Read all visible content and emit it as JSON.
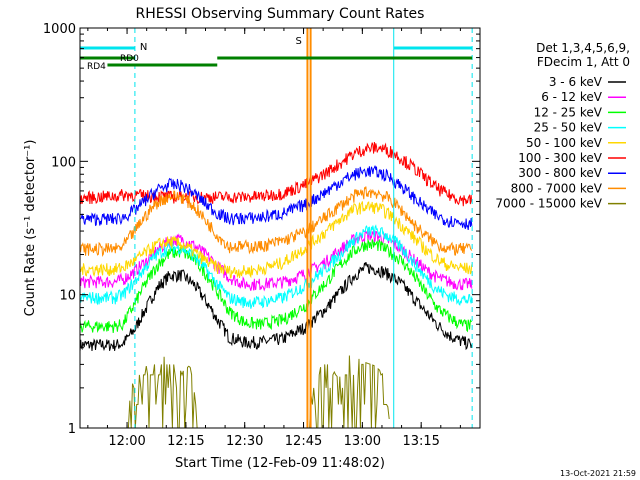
{
  "chart_data": {
    "type": "line",
    "title": "RHESSI Observing Summary Count Rates",
    "xlabel": "Start Time (12-Feb-09 11:48:02)",
    "ylabel": "Count Rate (s⁻¹ detector⁻¹)",
    "y_scale": "log",
    "ylim": [
      1,
      1000
    ],
    "x_range_minutes_from_start": [
      0,
      102
    ],
    "x_ticks": [
      {
        "label": "12:00",
        "minute": 12
      },
      {
        "label": "12:15",
        "minute": 27
      },
      {
        "label": "12:30",
        "minute": 42
      },
      {
        "label": "12:45",
        "minute": 57
      },
      {
        "label": "13:00",
        "minute": 72
      },
      {
        "label": "13:15",
        "minute": 87
      }
    ],
    "y_ticks": [
      {
        "label": "1",
        "value": 1
      },
      {
        "label": "10",
        "value": 10
      },
      {
        "label": "100",
        "value": 100
      },
      {
        "label": "1000",
        "value": 1000
      }
    ],
    "legend": {
      "placement": "right",
      "header": [
        "Det 1,3,4,5,6,9,",
        "FDecim 1, Att 0"
      ]
    },
    "series": [
      {
        "name": "3 - 6 keV",
        "color": "#000000",
        "x": [
          0,
          9,
          11,
          14,
          17,
          20,
          23,
          26,
          29,
          32,
          35,
          38,
          42,
          46,
          52,
          58,
          63,
          67,
          70,
          73,
          76,
          79,
          82,
          85,
          88,
          91,
          94,
          97,
          100
        ],
        "values": [
          4.2,
          4.2,
          4.3,
          5.5,
          8,
          11.5,
          14,
          14,
          12,
          9,
          6.5,
          4.8,
          4.4,
          4.4,
          4.7,
          5.8,
          8,
          11,
          14,
          16,
          15.5,
          14,
          12,
          9.5,
          7.5,
          6,
          5,
          4.5,
          4.2
        ]
      },
      {
        "name": "6 - 12 keV",
        "color": "#ff00ff",
        "x": [
          0,
          9,
          11,
          14,
          17,
          20,
          23,
          26,
          29,
          32,
          35,
          38,
          42,
          46,
          52,
          58,
          63,
          67,
          70,
          73,
          76,
          79,
          82,
          85,
          88,
          91,
          94,
          97,
          100
        ],
        "values": [
          12.5,
          12.5,
          13,
          15,
          18,
          22,
          25.5,
          26,
          23.5,
          20,
          16.5,
          13.5,
          12,
          12,
          12.5,
          14.5,
          18,
          22.5,
          26,
          28,
          27.5,
          25,
          22,
          18.5,
          15.5,
          13.5,
          12.5,
          12,
          12
        ]
      },
      {
        "name": "12 - 25 keV",
        "color": "#00ff00",
        "x": [
          0,
          9,
          11,
          14,
          17,
          20,
          23,
          26,
          29,
          32,
          35,
          38,
          42,
          46,
          52,
          58,
          63,
          67,
          70,
          73,
          76,
          79,
          82,
          85,
          88,
          91,
          94,
          97,
          100
        ],
        "values": [
          5.8,
          5.8,
          6,
          8.5,
          12.5,
          17,
          20.5,
          21,
          18.5,
          14.5,
          10.5,
          7.5,
          6.2,
          6,
          6.5,
          8.5,
          12.5,
          17.5,
          21.5,
          24,
          23.5,
          21,
          18,
          14,
          10.5,
          8,
          6.8,
          6,
          5.8
        ]
      },
      {
        "name": "25 - 50 keV",
        "color": "#00ffff",
        "x": [
          0,
          9,
          11,
          14,
          17,
          20,
          23,
          26,
          29,
          32,
          35,
          38,
          42,
          46,
          52,
          58,
          63,
          67,
          70,
          73,
          76,
          79,
          82,
          85,
          88,
          91,
          94,
          97,
          100
        ],
        "values": [
          9.5,
          9.5,
          10,
          12.5,
          16.5,
          20.5,
          22.5,
          22.5,
          19.5,
          15.5,
          12,
          9.5,
          8.8,
          8.8,
          9.5,
          12,
          16,
          21,
          26,
          30,
          30,
          27,
          22.5,
          17.5,
          13.5,
          11,
          9.8,
          9.3,
          9
        ]
      },
      {
        "name": "50 - 100 keV",
        "color": "#ffd700",
        "x": [
          0,
          9,
          11,
          14,
          17,
          20,
          23,
          26,
          29,
          32,
          35,
          38,
          42,
          46,
          52,
          58,
          63,
          67,
          70,
          73,
          76,
          79,
          82,
          85,
          88,
          91,
          94,
          97,
          100
        ],
        "values": [
          15.5,
          15.5,
          16,
          18,
          21,
          24,
          25,
          24,
          21,
          18,
          16,
          15,
          15,
          15.5,
          17.5,
          23,
          30,
          38,
          44,
          46,
          45,
          40,
          33,
          27,
          22,
          18.5,
          16.5,
          16,
          15.5
        ]
      },
      {
        "name": "100 - 300 keV",
        "color": "#ff0000",
        "x": [
          0,
          9,
          11,
          14,
          17,
          20,
          23,
          26,
          29,
          32,
          35,
          38,
          42,
          46,
          52,
          58,
          63,
          67,
          70,
          73,
          76,
          79,
          82,
          85,
          88,
          91,
          94,
          97,
          100
        ],
        "values": [
          53,
          55,
          56,
          56,
          55,
          55,
          54,
          54,
          54,
          54,
          54,
          54,
          54,
          54.5,
          58,
          68,
          83,
          100,
          115,
          125,
          127,
          120,
          105,
          90,
          75,
          63,
          56,
          52,
          51
        ]
      },
      {
        "name": "300 - 800 keV",
        "color": "#0000ff",
        "x": [
          0,
          9,
          11,
          14,
          17,
          20,
          23,
          26,
          29,
          32,
          35,
          38,
          42,
          46,
          52,
          58,
          63,
          67,
          70,
          73,
          76,
          79,
          82,
          85,
          88,
          91,
          94,
          97,
          100
        ],
        "values": [
          37,
          37,
          38,
          43,
          52,
          62,
          67,
          66,
          58,
          48,
          41,
          37,
          37.5,
          38,
          41,
          48,
          60,
          72,
          80,
          85,
          83,
          76,
          65,
          54,
          45,
          39,
          36,
          35,
          34
        ]
      },
      {
        "name": "800 - 7000 keV",
        "color": "#ff8c00",
        "x": [
          0,
          9,
          11,
          14,
          17,
          20,
          23,
          26,
          29,
          32,
          35,
          38,
          42,
          46,
          52,
          58,
          63,
          67,
          70,
          73,
          76,
          79,
          82,
          85,
          88,
          91,
          94,
          97,
          100
        ],
        "values": [
          22,
          22,
          23,
          30,
          40,
          50,
          55,
          54,
          46,
          36,
          28,
          23,
          23,
          23,
          25.5,
          30,
          39,
          48,
          55,
          59,
          58,
          52,
          43,
          34,
          28,
          24,
          22,
          22,
          22
        ]
      },
      {
        "name": "7000 - 15000 keV",
        "color": "#808000",
        "x": [
          12,
          14,
          16,
          18,
          20,
          23,
          26,
          28,
          30,
          58,
          60,
          63,
          66,
          69,
          72,
          75,
          77,
          79
        ],
        "values": [
          1,
          2.5,
          3,
          2.5,
          3.5,
          3,
          2.5,
          2.8,
          1,
          1,
          2.5,
          3,
          2.2,
          3.5,
          3,
          2.8,
          2.5,
          1
        ]
      }
    ],
    "annotations": {
      "attenuator_label": "S",
      "attenuator_lines_at_minutes": [
        58,
        58.8
      ],
      "night_label": "N",
      "night_lines_at_minutes": [
        0,
        14,
        80,
        100
      ],
      "decimation_labels": [
        "RD0",
        "RD4"
      ],
      "decimation_segments_minutes": {
        "RD0": [
          [
            0,
            14
          ],
          [
            35,
            100
          ]
        ],
        "RD4": [
          [
            7,
            35
          ]
        ]
      }
    },
    "timestamp": "13-Oct-2021 21:59"
  }
}
